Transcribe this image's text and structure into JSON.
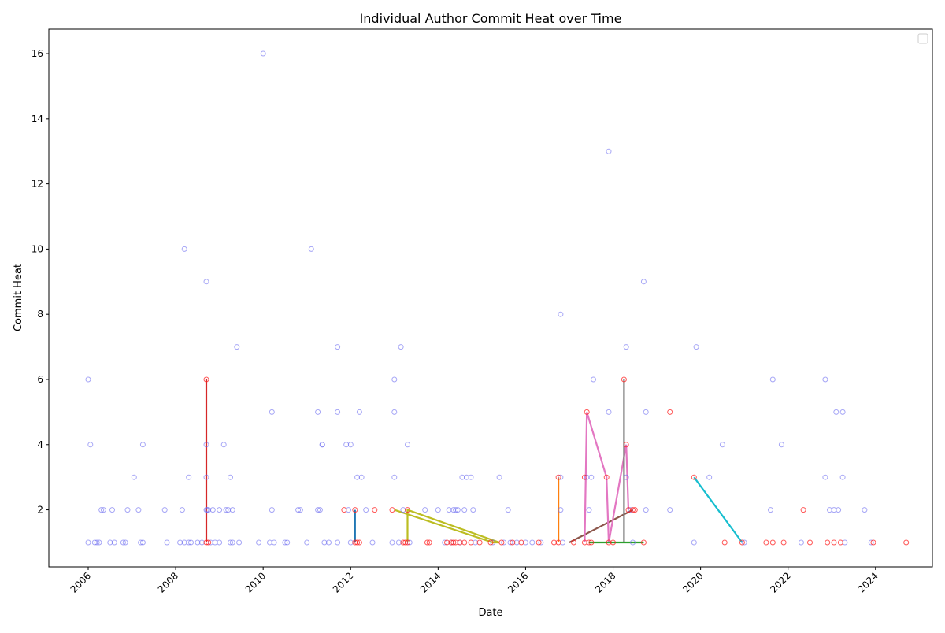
{
  "chart_data": {
    "type": "scatter",
    "title": "Individual Author Commit Heat over Time",
    "xlabel": "Date",
    "ylabel": "Commit Heat",
    "xlim": [
      2005.1,
      2025.3
    ],
    "ylim": [
      0.25,
      16.75
    ],
    "x_ticks": [
      2006,
      2008,
      2010,
      2012,
      2014,
      2016,
      2018,
      2020,
      2022,
      2024
    ],
    "x_tick_labels": [
      "2006",
      "2008",
      "2010",
      "2012",
      "2014",
      "2016",
      "2018",
      "2020",
      "2022",
      "2024"
    ],
    "y_ticks": [
      2,
      4,
      6,
      8,
      10,
      12,
      14,
      16
    ],
    "y_tick_labels": [
      "2",
      "4",
      "6",
      "8",
      "10",
      "12",
      "14",
      "16"
    ],
    "grid": false,
    "legend": {
      "placement": "top-right",
      "entries": []
    },
    "colors": {
      "blue_points": "#6b6bf0",
      "red_points": "#ff2020"
    },
    "blue_points": [
      [
        2006.0,
        6
      ],
      [
        2006.05,
        4
      ],
      [
        2006.0,
        1
      ],
      [
        2006.15,
        1
      ],
      [
        2006.2,
        1
      ],
      [
        2006.25,
        1
      ],
      [
        2006.3,
        2
      ],
      [
        2006.35,
        2
      ],
      [
        2006.5,
        1
      ],
      [
        2006.55,
        2
      ],
      [
        2006.6,
        1
      ],
      [
        2006.8,
        1
      ],
      [
        2006.85,
        1
      ],
      [
        2006.9,
        2
      ],
      [
        2007.05,
        3
      ],
      [
        2007.15,
        2
      ],
      [
        2007.2,
        1
      ],
      [
        2007.25,
        4
      ],
      [
        2007.25,
        1
      ],
      [
        2007.75,
        2
      ],
      [
        2007.8,
        1
      ],
      [
        2008.1,
        1
      ],
      [
        2008.15,
        2
      ],
      [
        2008.2,
        10
      ],
      [
        2008.2,
        1
      ],
      [
        2008.3,
        1
      ],
      [
        2008.3,
        3
      ],
      [
        2008.35,
        1
      ],
      [
        2008.5,
        1
      ],
      [
        2008.6,
        1
      ],
      [
        2008.7,
        9
      ],
      [
        2008.7,
        4
      ],
      [
        2008.7,
        3
      ],
      [
        2008.7,
        2
      ],
      [
        2008.72,
        2
      ],
      [
        2008.75,
        2
      ],
      [
        2008.8,
        1
      ],
      [
        2008.85,
        2
      ],
      [
        2008.9,
        1
      ],
      [
        2009.0,
        1
      ],
      [
        2009.0,
        2
      ],
      [
        2009.1,
        4
      ],
      [
        2009.15,
        2
      ],
      [
        2009.2,
        2
      ],
      [
        2009.25,
        3
      ],
      [
        2009.25,
        1
      ],
      [
        2009.3,
        1
      ],
      [
        2009.3,
        2
      ],
      [
        2009.4,
        7
      ],
      [
        2009.45,
        1
      ],
      [
        2009.9,
        1
      ],
      [
        2010.0,
        16
      ],
      [
        2010.15,
        1
      ],
      [
        2010.2,
        5
      ],
      [
        2010.2,
        2
      ],
      [
        2010.25,
        1
      ],
      [
        2010.5,
        1
      ],
      [
        2010.55,
        1
      ],
      [
        2010.8,
        2
      ],
      [
        2010.85,
        2
      ],
      [
        2011.0,
        1
      ],
      [
        2011.1,
        10
      ],
      [
        2011.25,
        5
      ],
      [
        2011.25,
        2
      ],
      [
        2011.3,
        2
      ],
      [
        2011.35,
        4
      ],
      [
        2011.35,
        4
      ],
      [
        2011.4,
        1
      ],
      [
        2011.5,
        1
      ],
      [
        2011.7,
        7
      ],
      [
        2011.7,
        5
      ],
      [
        2011.7,
        1
      ],
      [
        2011.9,
        4
      ],
      [
        2011.95,
        2
      ],
      [
        2012.0,
        4
      ],
      [
        2012.0,
        1
      ],
      [
        2012.15,
        3
      ],
      [
        2012.2,
        5
      ],
      [
        2012.25,
        3
      ],
      [
        2012.35,
        2
      ],
      [
        2012.5,
        1
      ],
      [
        2012.95,
        1
      ],
      [
        2013.0,
        6
      ],
      [
        2013.0,
        5
      ],
      [
        2013.0,
        3
      ],
      [
        2013.1,
        1
      ],
      [
        2013.15,
        7
      ],
      [
        2013.2,
        2
      ],
      [
        2013.3,
        4
      ],
      [
        2013.35,
        1
      ],
      [
        2013.7,
        2
      ],
      [
        2014.0,
        2
      ],
      [
        2014.15,
        1
      ],
      [
        2014.25,
        2
      ],
      [
        2014.3,
        1
      ],
      [
        2014.35,
        2
      ],
      [
        2014.4,
        2
      ],
      [
        2014.45,
        2
      ],
      [
        2014.5,
        1
      ],
      [
        2014.55,
        3
      ],
      [
        2014.6,
        2
      ],
      [
        2014.65,
        3
      ],
      [
        2014.75,
        3
      ],
      [
        2014.8,
        2
      ],
      [
        2014.85,
        1
      ],
      [
        2015.25,
        1
      ],
      [
        2015.4,
        3
      ],
      [
        2015.5,
        1
      ],
      [
        2015.6,
        2
      ],
      [
        2015.65,
        1
      ],
      [
        2015.8,
        1
      ],
      [
        2016.0,
        1
      ],
      [
        2016.15,
        1
      ],
      [
        2016.35,
        1
      ],
      [
        2016.8,
        8
      ],
      [
        2016.8,
        3
      ],
      [
        2016.8,
        2
      ],
      [
        2016.85,
        1
      ],
      [
        2017.4,
        3
      ],
      [
        2017.45,
        2
      ],
      [
        2017.5,
        3
      ],
      [
        2017.55,
        6
      ],
      [
        2017.9,
        13
      ],
      [
        2017.9,
        5
      ],
      [
        2018.3,
        7
      ],
      [
        2018.3,
        3
      ],
      [
        2018.4,
        2
      ],
      [
        2018.45,
        1
      ],
      [
        2018.7,
        9
      ],
      [
        2018.75,
        5
      ],
      [
        2018.75,
        2
      ],
      [
        2019.3,
        2
      ],
      [
        2019.85,
        1
      ],
      [
        2019.9,
        7
      ],
      [
        2020.2,
        3
      ],
      [
        2020.5,
        4
      ],
      [
        2021.0,
        1
      ],
      [
        2021.6,
        2
      ],
      [
        2021.65,
        6
      ],
      [
        2021.85,
        4
      ],
      [
        2022.3,
        1
      ],
      [
        2022.85,
        6
      ],
      [
        2022.85,
        3
      ],
      [
        2022.95,
        2
      ],
      [
        2023.05,
        2
      ],
      [
        2023.1,
        5
      ],
      [
        2023.15,
        2
      ],
      [
        2023.25,
        3
      ],
      [
        2023.25,
        5
      ],
      [
        2023.3,
        1
      ],
      [
        2023.75,
        2
      ],
      [
        2023.9,
        1
      ]
    ],
    "red_points": [
      [
        2008.7,
        6
      ],
      [
        2008.7,
        1
      ],
      [
        2008.75,
        1
      ],
      [
        2011.85,
        2
      ],
      [
        2012.1,
        2
      ],
      [
        2012.1,
        1
      ],
      [
        2012.15,
        1
      ],
      [
        2012.2,
        1
      ],
      [
        2012.55,
        2
      ],
      [
        2012.95,
        2
      ],
      [
        2013.2,
        1
      ],
      [
        2013.25,
        1
      ],
      [
        2013.3,
        2
      ],
      [
        2013.3,
        1
      ],
      [
        2013.75,
        1
      ],
      [
        2013.8,
        1
      ],
      [
        2014.2,
        1
      ],
      [
        2014.3,
        1
      ],
      [
        2014.35,
        1
      ],
      [
        2014.4,
        1
      ],
      [
        2014.5,
        1
      ],
      [
        2014.6,
        1
      ],
      [
        2014.75,
        1
      ],
      [
        2014.95,
        1
      ],
      [
        2015.2,
        1
      ],
      [
        2015.45,
        1
      ],
      [
        2015.7,
        1
      ],
      [
        2015.9,
        1
      ],
      [
        2016.3,
        1
      ],
      [
        2016.65,
        1
      ],
      [
        2016.75,
        1
      ],
      [
        2016.75,
        3
      ],
      [
        2017.1,
        1
      ],
      [
        2017.35,
        3
      ],
      [
        2017.4,
        5
      ],
      [
        2017.35,
        1
      ],
      [
        2017.45,
        1
      ],
      [
        2017.5,
        1
      ],
      [
        2017.85,
        3
      ],
      [
        2017.9,
        1
      ],
      [
        2018.0,
        1
      ],
      [
        2018.25,
        6
      ],
      [
        2018.3,
        4
      ],
      [
        2018.35,
        2
      ],
      [
        2018.45,
        2
      ],
      [
        2018.5,
        2
      ],
      [
        2018.7,
        1
      ],
      [
        2019.3,
        5
      ],
      [
        2019.85,
        3
      ],
      [
        2020.55,
        1
      ],
      [
        2020.95,
        1
      ],
      [
        2021.5,
        1
      ],
      [
        2021.65,
        1
      ],
      [
        2021.9,
        1
      ],
      [
        2022.35,
        2
      ],
      [
        2022.5,
        1
      ],
      [
        2022.9,
        1
      ],
      [
        2023.05,
        1
      ],
      [
        2023.2,
        1
      ],
      [
        2023.95,
        1
      ],
      [
        2024.7,
        1
      ]
    ],
    "author_series": [
      {
        "color": "#d62728",
        "points": [
          [
            2008.7,
            6
          ],
          [
            2008.7,
            1
          ]
        ]
      },
      {
        "color": "#1f77b4",
        "points": [
          [
            2012.1,
            2
          ],
          [
            2012.1,
            1
          ]
        ]
      },
      {
        "color": "#bcbd22",
        "points": [
          [
            2013.0,
            2
          ],
          [
            2015.25,
            1
          ],
          [
            2015.4,
            1
          ],
          [
            2013.3,
            2
          ],
          [
            2013.3,
            1
          ]
        ]
      },
      {
        "color": "#ff7f0e",
        "points": [
          [
            2016.75,
            3
          ],
          [
            2016.75,
            1
          ]
        ]
      },
      {
        "color": "#8c564b",
        "points": [
          [
            2017.0,
            1
          ],
          [
            2018.45,
            2
          ]
        ]
      },
      {
        "color": "#e377c2",
        "points": [
          [
            2017.35,
            1
          ],
          [
            2017.4,
            5
          ],
          [
            2017.85,
            3
          ],
          [
            2017.9,
            1
          ],
          [
            2018.3,
            4
          ],
          [
            2018.35,
            2
          ]
        ]
      },
      {
        "color": "#7f7f7f",
        "points": [
          [
            2018.25,
            6
          ],
          [
            2018.25,
            1
          ]
        ]
      },
      {
        "color": "#2ca02c",
        "points": [
          [
            2017.45,
            1
          ],
          [
            2018.7,
            1
          ]
        ]
      },
      {
        "color": "#17becf",
        "points": [
          [
            2019.85,
            3
          ],
          [
            2020.95,
            1
          ]
        ]
      }
    ]
  }
}
